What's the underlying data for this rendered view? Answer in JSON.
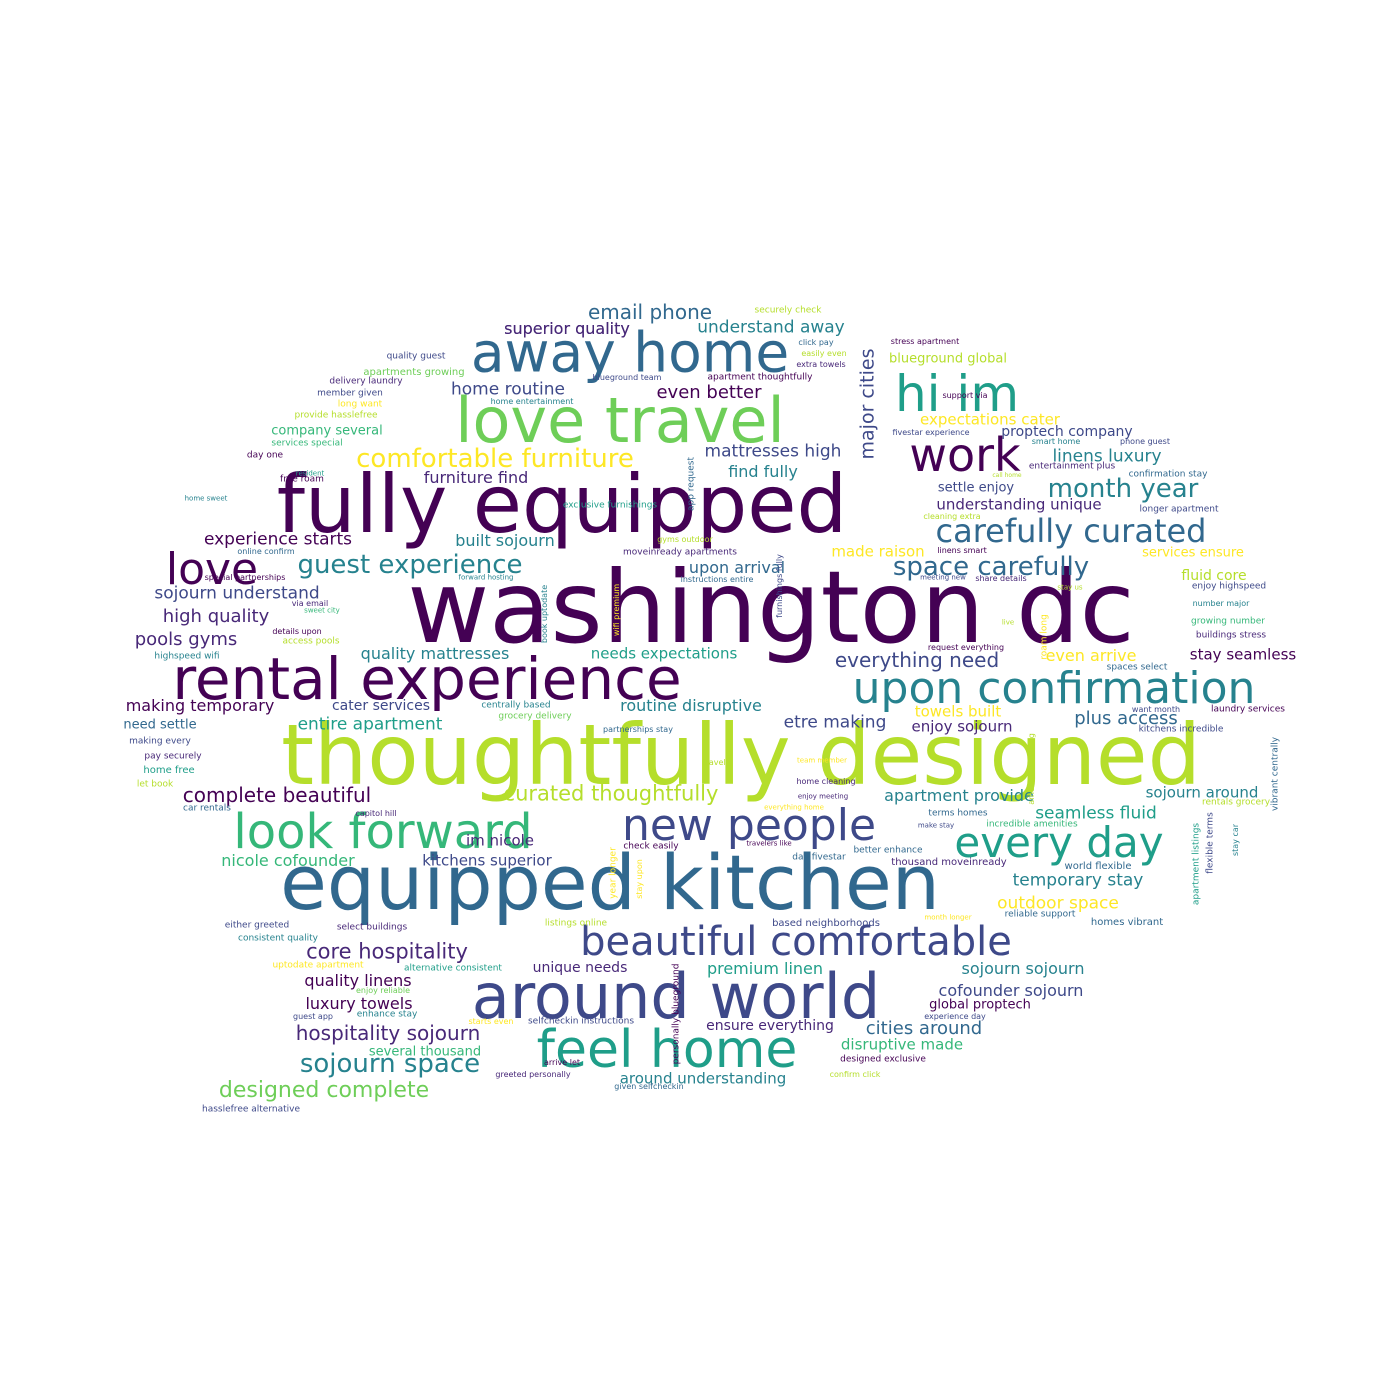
{
  "palette": [
    "#440154",
    "#482878",
    "#3e4989",
    "#31688e",
    "#26828e",
    "#1f9e89",
    "#35b779",
    "#6ece58",
    "#b5de2b",
    "#fde725"
  ],
  "words": [
    "washington dc",
    "thoughtfully designed",
    "fully equipped",
    "equipped kitchen",
    "love travel",
    "rental experience",
    "away home",
    "around world",
    "upon confirmation",
    "feel home",
    "beautiful comfortable",
    "look forward",
    "hi im",
    "new people",
    "every day",
    "work",
    "love",
    "carefully curated",
    "comfortable furniture",
    "guest experience",
    "space carefully",
    "month year",
    "major cities",
    "sojourn space",
    "designed complete",
    "curated thoughtfully",
    "complete beautiful",
    "core hospitality",
    "hospitality sojourn",
    "everything need",
    "email phone",
    "superior quality",
    "understand away",
    "home routine",
    "even better",
    "mattresses high",
    "furniture find",
    "find fully",
    "linens luxury",
    "expectations cater",
    "proptech company",
    "experience starts",
    "built sojourn",
    "upon arrival",
    "made raison",
    "sojourn understand",
    "high quality",
    "pools gyms",
    "quality mattresses",
    "needs expectations",
    "making temporary",
    "cater services",
    "routine disruptive",
    "entire apartment",
    "etre making",
    "enjoy sojourn",
    "plus access",
    "stay seamless",
    "even arrive",
    "towels built",
    "apartment provide",
    "seamless fluid",
    "sojourn around",
    "nicole cofounder",
    "kitchens superior",
    "im nicole",
    "temporary stay",
    "outdoor space",
    "premium linen",
    "sojourn sojourn",
    "unique needs",
    "quality linens",
    "luxury towels",
    "cofounder sojourn",
    "global proptech",
    "cities around",
    "ensure everything",
    "disruptive made",
    "around understanding",
    "several thousand",
    "company several",
    "settle enjoy",
    "understanding unique",
    "fluid core",
    "services ensure",
    "blueground global",
    "need settle",
    "superior quality",
    "quality guest",
    "apartments growing",
    "delivery laundry",
    "member given",
    "long want",
    "provide hasslefree",
    "services special",
    "day one",
    "free roam",
    "home sweet",
    "online confirm",
    "special partnerships",
    "via email",
    "sweet city",
    "details upon",
    "access pools",
    "highspeed wifi",
    "making every",
    "pay securely",
    "home free",
    "let book",
    "car rentals",
    "capitol hill",
    "either greeted",
    "consistent quality",
    "uptodate apartment",
    "alternative consistent",
    "enjoy reliable",
    "guest app",
    "enhance stay",
    "starts even",
    "selfcheckin instructions",
    "greeted personally",
    "arrive let",
    "given selfcheckin",
    "hasslefree alternative",
    "select buildings",
    "listings online",
    "centrally based",
    "grocery delivery",
    "partnerships stay",
    "travel",
    "team member",
    "home cleaning",
    "enjoy meeting",
    "everything home",
    "better enhance",
    "make stay",
    "terms homes",
    "incredible amenities",
    "check easily",
    "travelers like",
    "day fivestar",
    "thousand moveinready",
    "world flexible",
    "reliable support",
    "month longer",
    "homes vibrant",
    "based neighborhoods",
    "designed exclusive",
    "confirm click",
    "experience day",
    "securely check",
    "click pay",
    "easily even",
    "extra towels",
    "stress apartment",
    "blueground team",
    "apartment thoughtfully",
    "home entertainment",
    "support via",
    "fivestar experience",
    "smart home",
    "phone guest",
    "call home",
    "entertainment plus",
    "confirmation stay",
    "enjoy highspeed",
    "number major",
    "growing number",
    "buildings stress",
    "spaces select",
    "want month",
    "laundry services",
    "kitchens incredible",
    "vibrant centrally",
    "rentals grocery",
    "flexible terms",
    "stay car",
    "apartment listings",
    "amenities making",
    "longer apartment",
    "cleaning extra",
    "linens smart",
    "meeting new",
    "share details",
    "stay us",
    "request everything",
    "live",
    "roam long",
    "moveinready apartments",
    "gyms outdoor",
    "exclusive furnishings",
    "forward hosting",
    "instructions entire",
    "wifi premium",
    "furnishings fully",
    "book uptodate",
    "app request",
    "stay upon",
    "year longer",
    "personally blueground",
    "resident"
  ]
}
